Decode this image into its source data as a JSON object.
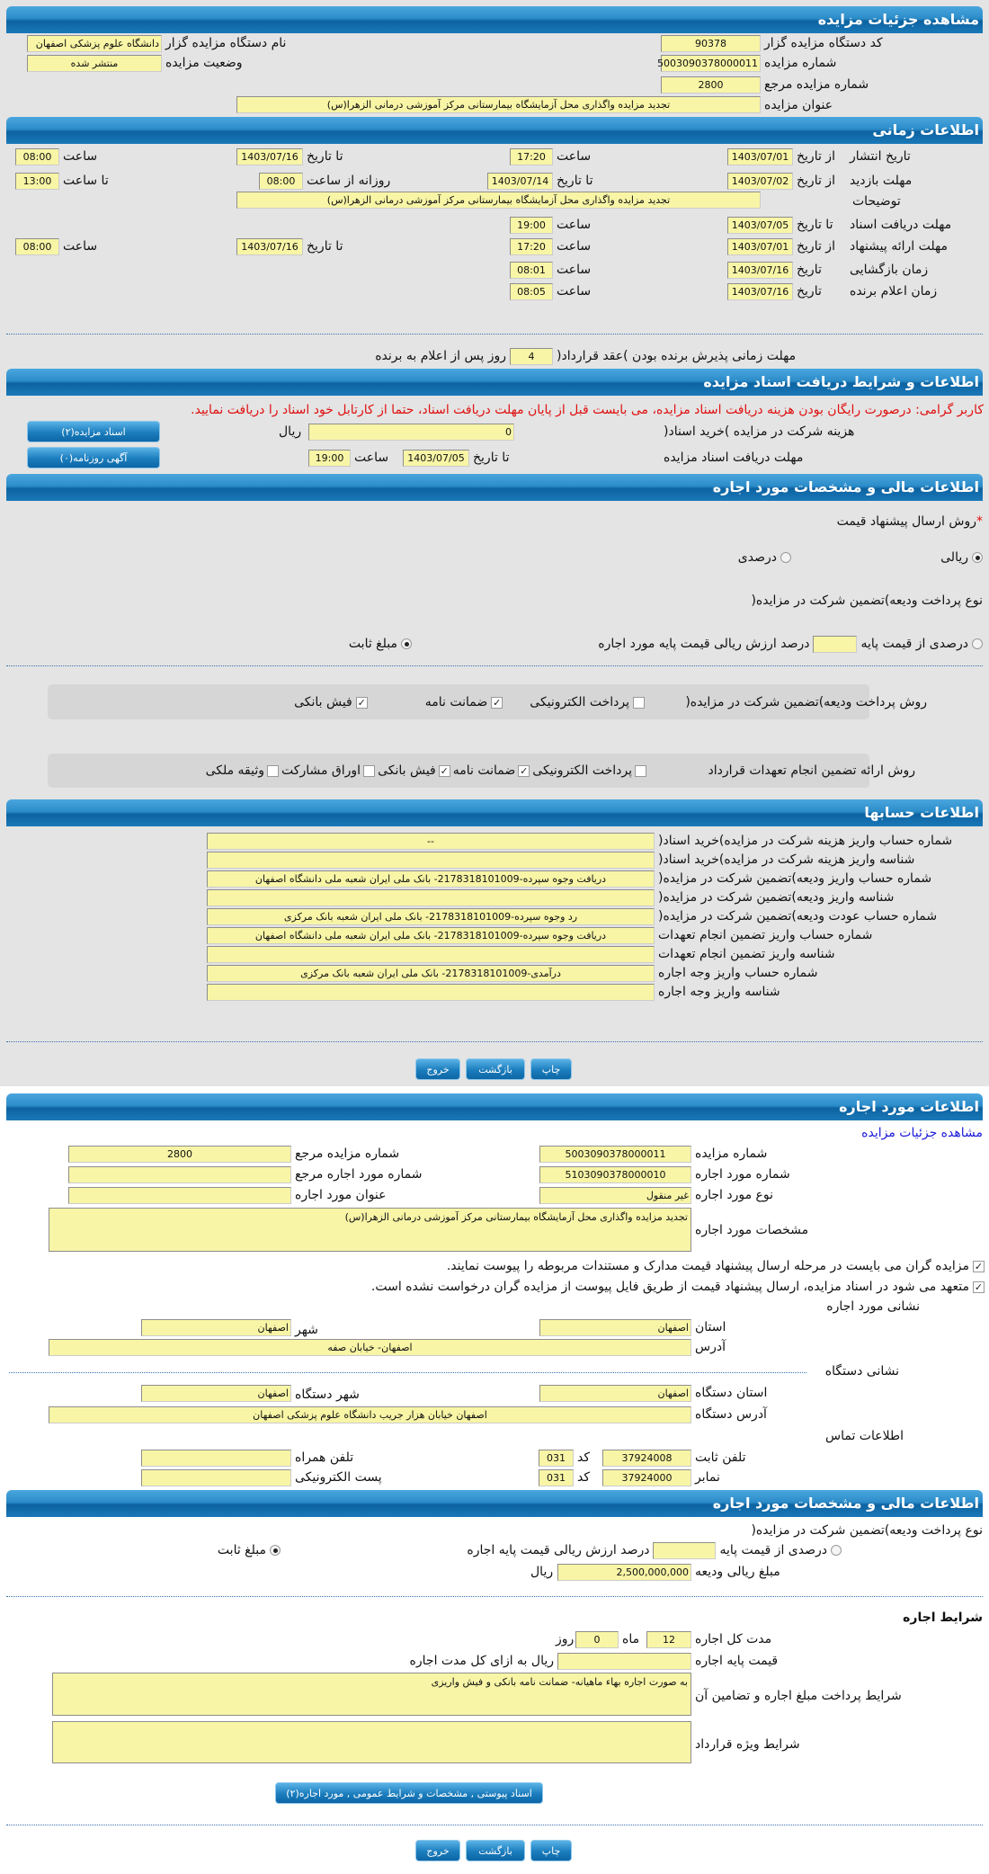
{
  "s1": {
    "title": "مشاهده جزئیات مزایده",
    "code_label": "کد دستگاه مزایده گزار",
    "code": "90378",
    "name_label": "نام دستگاه مزایده گزار",
    "name": "دانشگاه علوم پزشکی اصفهان",
    "num_label": "شماره مزایده",
    "num": "5003090378000011",
    "status_label": "وضعیت مزایده",
    "status": "منتشر شده",
    "ref_label": "شماره مزایده مرجع",
    "ref": "2800",
    "subject_label": "عنوان مزایده",
    "subject": "تجدید مزایده واگذاری محل آزمایشگاه بیمارستانی مرکز آموزشی درمانی الزهرا(س)"
  },
  "s2": {
    "title": "اطلاعات زمانی",
    "from_date": "از تاریخ",
    "to_date": "تا تاریخ",
    "date": "تاریخ",
    "time": "ساعت",
    "to_time": "تا ساعت",
    "daily_from": "روزانه از ساعت",
    "desc_label": "توضیحات",
    "desc": "تجدید مزایده واگذاری محل آزمایشگاه بیمارستانی مرکز آموزشی درمانی الزهرا(س)",
    "publish": {
      "label": "تاریخ انتشار",
      "from": "1403/07/01",
      "from_time": "17:20",
      "to": "1403/07/16",
      "to_time": "08:00"
    },
    "visit": {
      "label": "مهلت بازدید",
      "from": "1403/07/02",
      "to": "1403/07/14",
      "daily_from": "08:00",
      "to_time": "13:00"
    },
    "docs": {
      "label": "مهلت دریافت اسناد",
      "to": "1403/07/05",
      "time": "19:00"
    },
    "offer": {
      "label": "مهلت ارائه پیشنهاد",
      "from": "1403/07/01",
      "from_time": "17:20",
      "to": "1403/07/16",
      "to_time": "08:00"
    },
    "opening": {
      "label": "زمان بازگشایی",
      "date": "1403/07/16",
      "time": "08:01"
    },
    "winner": {
      "label": "زمان اعلام برنده",
      "date": "1403/07/16",
      "time": "08:05"
    },
    "accept_label": "مهلت زمانی پذیرش برنده بودن )عقد قرارداد(",
    "accept_days": "4",
    "accept_suffix": "روز پس از اعلام به برنده"
  },
  "s3": {
    "title": "اطلاعات و شرایط دریافت اسناد مزایده",
    "notice": "کاربر گرامی: درصورت رایگان بودن هزینه دریافت اسناد مزایده، می بایست قبل از پایان مهلت دریافت اسناد، حتما از کارتابل خود اسناد را دریافت نمایید.",
    "fee_label": "هزینه شرکت در مزایده )خرید اسناد(",
    "fee": "0",
    "rial": "ریال",
    "deadline_label": "مهلت دریافت اسناد مزایده",
    "to_date": "تا تاریخ",
    "date": "1403/07/05",
    "time_label": "ساعت",
    "time": "19:00",
    "docs_button": "اسناد مزایده(۲)",
    "ads_button": "آگهی روزنامه(۰)"
  },
  "s4": {
    "title": "اطلاعات مالی و مشخصات مورد اجاره",
    "method_label": "روش ارسال پیشنهاد قیمت",
    "required": "*",
    "rial_opt": "ریالی",
    "percent_opt": "درصدی",
    "deposit_type_label": "نوع پرداخت ودیعه)تضمین شرکت در مزایده(",
    "pct_base": "درصدی از قیمت پایه",
    "pct_text": "درصد ارزش ریالی قیمت پایه مورد اجاره",
    "fixed": "مبلغ ثابت",
    "deposit_method_label": "روش پرداخت ودیعه)تضمین شرکت در مزایده(",
    "deposit_methods": [
      {
        "label": "پرداخت الکترونیکی",
        "checked": false
      },
      {
        "label": "ضمانت نامه",
        "checked": true
      },
      {
        "label": "فیش بانکی",
        "checked": true
      }
    ],
    "guarantee_label": "روش ارائه تضمین انجام تعهدات قرارداد",
    "guarantee_methods": [
      {
        "label": "پرداخت الکترونیکی",
        "checked": false
      },
      {
        "label": "ضمانت نامه",
        "checked": true
      },
      {
        "label": "فیش بانکی",
        "checked": true
      },
      {
        "label": "اوراق مشارکت",
        "checked": false
      },
      {
        "label": "وثیقه ملکی",
        "checked": false
      }
    ]
  },
  "s5": {
    "title": "اطلاعات حسابها",
    "rows": [
      {
        "label": "شماره حساب واریز هزینه شرکت در مزایده)خرید اسناد(",
        "value": "--"
      },
      {
        "label": "شناسه واریز هزینه شرکت در مزایده)خرید اسناد(",
        "value": ""
      },
      {
        "label": "شماره حساب واریز ودیعه)تضمین شرکت در مزایده(",
        "value": "دریافت وجوه سپرده-2178318101009- بانک ملی ایران شعبه ملی دانشگاه اصفهان"
      },
      {
        "label": "شناسه واریز ودیعه)تضمین شرکت در مزایده(",
        "value": ""
      },
      {
        "label": "شماره حساب عودت ودیعه)تضمین شرکت در مزایده(",
        "value": "رد وجوه سپرده-2178318101009- بانک ملی ایران شعبه بانک مرکزی"
      },
      {
        "label": "شماره حساب واریز تضمین انجام تعهدات",
        "value": "دریافت وجوه سپرده-2178318101009- بانک ملی ایران شعبه ملی دانشگاه اصفهان"
      },
      {
        "label": "شناسه واریز تضمین انجام تعهدات",
        "value": ""
      },
      {
        "label": "شماره حساب واریز وجه اجاره",
        "value": "درآمدی-2178318101009- بانک ملی ایران شعبه بانک مرکزی"
      },
      {
        "label": "شناسه واریز وجه اجاره",
        "value": ""
      }
    ]
  },
  "buttons": {
    "print": "چاپ",
    "back": "بازگشت",
    "exit": "خروج"
  },
  "s6": {
    "title": "اطلاعات مورد اجاره",
    "link": "مشاهده جزئیات مزایده",
    "num_label": "شماره مزایده",
    "num": "5003090378000011",
    "ref_label": "شماره مزایده مرجع",
    "ref": "2800",
    "item_num_label": "شماره مورد اجاره",
    "item_num": "5103090378000010",
    "item_ref_label": "شماره مورد اجاره مرجع",
    "item_ref": "",
    "type_label": "نوع مورد اجاره",
    "type": "غیر منقول",
    "item_title_label": "عنوان مورد اجاره",
    "item_title": "",
    "spec_label": "مشخصات مورد اجاره",
    "spec": "تجدید مزایده واگذاری محل آزمایشگاه بیمارستانی مرکز آموزشی درمانی الزهرا(س)",
    "check1": "مزایده گران می بایست در مرحله ارسال پیشنهاد قیمت مدارک و مستندات مربوطه را پیوست نمایند.",
    "check2": "متعهد می شود در اسناد مزایده، ارسال پیشنهاد قیمت از طریق فایل پیوست از مزایده گران درخواست نشده است.",
    "addr_title": "نشانی مورد اجاره",
    "province_label": "استان",
    "province": "اصفهان",
    "city_label": "شهر",
    "city": "اصفهان",
    "address_label": "آدرس",
    "address": "اصفهان- خیابان صفه",
    "org_title": "نشانی دستگاه",
    "org_province_label": "استان دستگاه",
    "org_province": "اصفهان",
    "org_city_label": "شهر دستگاه",
    "org_city": "اصفهان",
    "org_address_label": "آدرس دستگاه",
    "org_address": "اصفهان خیابان هزار جریب دانشگاه علوم پزشکی اصفهان",
    "contact_title": "اطلاعات تماس",
    "phone_label": "تلفن ثابت",
    "phone": "37924008",
    "code_label": "کد",
    "phone_code": "031",
    "mobile_label": "تلفن همراه",
    "mobile": "",
    "fax_label": "نمابر",
    "fax": "37924000",
    "fax_code": "031",
    "email_label": "پست الکترونیکی",
    "email": ""
  },
  "s7": {
    "title": "اطلاعات مالی و مشخصات مورد اجاره",
    "deposit_type_label": "نوع پرداخت ودیعه)تضمین شرکت در مزایده(",
    "pct_base": "درصدی از قیمت پایه",
    "pct_text": "درصد ارزش ریالی قیمت پایه اجاره",
    "fixed": "مبلغ ثابت",
    "amount_label": "مبلغ ریالی ودیعه",
    "amount": "2,500,000,000",
    "rial": "ریال",
    "terms_title": "شرایط اجاره",
    "duration_label": "مدت کل اجاره",
    "months": "12",
    "month_unit": "ماه",
    "days": "0",
    "day_unit": "روز",
    "base_label": "قیمت پایه اجاره",
    "base": "",
    "base_suffix": "ریال به ازای کل مدت اجاره",
    "pay_label": "شرایط پرداخت مبلغ اجاره و تضامین آن",
    "pay": "به صورت اجاره بهاء ماهیانه- ضمانت نامه بانکی و فیش واریزی",
    "special_label": "شرایط ویژه قرارداد",
    "special": "",
    "attach_button": "اسناد پیوستی , مشخصات و شرایط عمومی , مورد اجاره(۲)"
  }
}
